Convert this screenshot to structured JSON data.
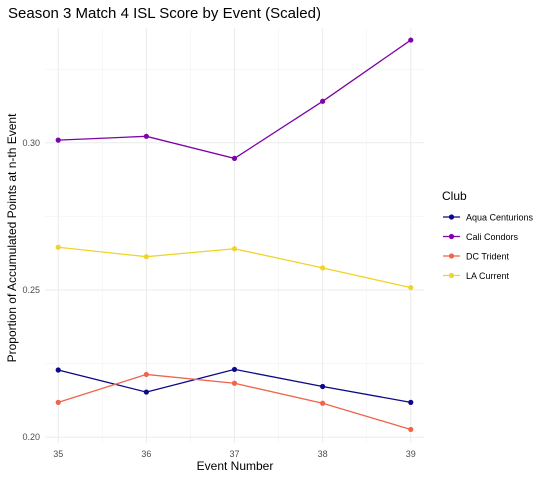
{
  "chart_data": {
    "type": "line",
    "title": "Season 3 Match 4 ISL Score by Event (Scaled)",
    "xlabel": "Event Number",
    "ylabel": "Proportion of Accumulated Points at n-th Event",
    "x": [
      35,
      36,
      37,
      38,
      39
    ],
    "xlim": [
      34.85,
      39.15
    ],
    "ylim": [
      0.198,
      0.339
    ],
    "yticks": [
      0.2,
      0.25,
      0.3
    ],
    "ytick_labels": [
      "0.20",
      "0.25",
      "0.30"
    ],
    "grid": true,
    "legend": {
      "title": "Club",
      "position": "right"
    },
    "series": [
      {
        "name": "Aqua Centurions",
        "color": "#0d0887",
        "values": [
          0.2228,
          0.2153,
          0.223,
          0.2172,
          0.2118
        ]
      },
      {
        "name": "Cali Condors",
        "color": "#7e03a8",
        "values": [
          0.3009,
          0.3022,
          0.2947,
          0.3141,
          0.3349
        ]
      },
      {
        "name": "DC Trident",
        "color": "#f0644a",
        "values": [
          0.2118,
          0.2213,
          0.2183,
          0.2115,
          0.2026
        ]
      },
      {
        "name": "LA Current",
        "color": "#f0d42a",
        "values": [
          0.2645,
          0.2613,
          0.264,
          0.2575,
          0.2508
        ]
      }
    ]
  }
}
